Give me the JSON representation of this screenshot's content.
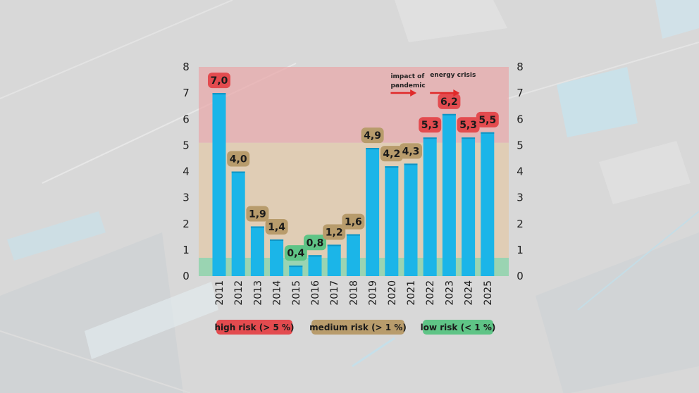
{
  "chart_data": {
    "type": "bar",
    "categories": [
      "2011",
      "2012",
      "2013",
      "2014",
      "2015",
      "2016",
      "2017",
      "2018",
      "2019",
      "2020",
      "2021",
      "2022",
      "2023",
      "2024",
      "2025"
    ],
    "values": [
      7.0,
      4.0,
      1.9,
      1.4,
      0.4,
      0.8,
      1.2,
      1.6,
      4.9,
      4.2,
      4.3,
      5.3,
      6.2,
      5.3,
      5.5
    ],
    "value_labels": [
      "7,0",
      "4,0",
      "1,9",
      "1,4",
      "0,4",
      "0,8",
      "1,2",
      "1,6",
      "4,9",
      "4,2",
      "4,3",
      "5,3",
      "6,2",
      "5,3",
      "5,5"
    ],
    "label_risk": [
      "high",
      "medium",
      "medium",
      "medium",
      "low",
      "low",
      "medium",
      "medium",
      "medium",
      "medium",
      "medium",
      "high",
      "high",
      "high",
      "high"
    ],
    "ylim": [
      0,
      8
    ],
    "yticks": [
      "0",
      "1",
      "2",
      "3",
      "4",
      "5",
      "6",
      "7",
      "8"
    ],
    "title": "",
    "xlabel": "",
    "ylabel": "",
    "bands": [
      {
        "risk": "low",
        "from": 0,
        "to": 0.7
      },
      {
        "risk": "medium",
        "from": 0.7,
        "to": 5.1
      },
      {
        "risk": "high",
        "from": 5.1,
        "to": 8
      }
    ],
    "annotations": [
      {
        "text": [
          "impact of",
          "pandemic"
        ],
        "start": 2019.95,
        "end": 2021.3
      },
      {
        "text": [
          "energy crisis"
        ],
        "start": 2022.0,
        "end": 2023.55
      }
    ],
    "legend": [
      {
        "risk": "high",
        "label": "high risk (> 5 %)"
      },
      {
        "risk": "medium",
        "label": "medium risk (> 1 %)"
      },
      {
        "risk": "low",
        "label": "low risk (< 1 %)"
      }
    ],
    "legend_placement": "bottom",
    "colors": {
      "bar": "#1bb5e8",
      "high": "#e34b4f",
      "medium": "#b89c6c",
      "low": "#5fc486",
      "band_high": "#e8a9ab",
      "band_medium": "#e3c9a9",
      "band_low": "#86d3a6",
      "arrow": "#e02a2a"
    }
  }
}
